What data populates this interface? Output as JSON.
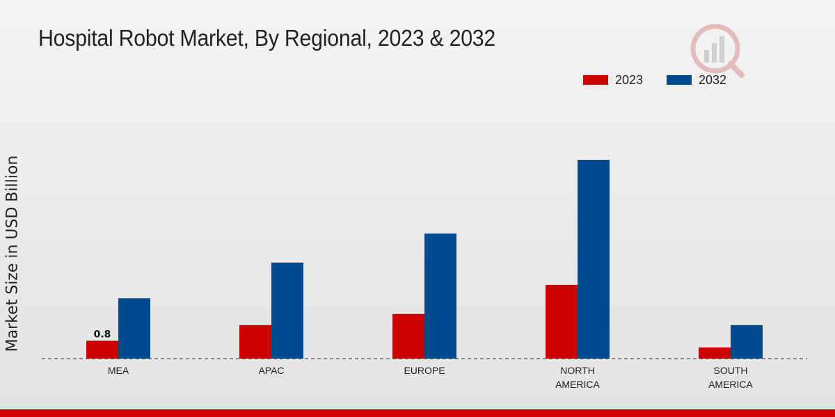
{
  "chart_data": {
    "type": "bar",
    "title": "Hospital Robot Market, By Regional, 2023 & 2032",
    "xlabel": "",
    "ylabel": "Market Size in USD Billion",
    "categories": [
      [
        "MEA"
      ],
      [
        "APAC"
      ],
      [
        "EUROPE"
      ],
      [
        "NORTH",
        "AMERICA"
      ],
      [
        "SOUTH",
        "AMERICA"
      ]
    ],
    "series": [
      {
        "name": "2023",
        "color": "#cc0000",
        "values": [
          0.8,
          1.5,
          2.0,
          3.3,
          0.5
        ]
      },
      {
        "name": "2032",
        "color": "#004a8f",
        "values": [
          2.7,
          4.3,
          5.6,
          8.9,
          1.5
        ]
      }
    ],
    "data_labels": [
      {
        "series": 0,
        "index": 0,
        "text": "0.8"
      }
    ],
    "ylim": [
      0,
      14.5
    ],
    "grid": false,
    "legend_position": "top-right"
  }
}
